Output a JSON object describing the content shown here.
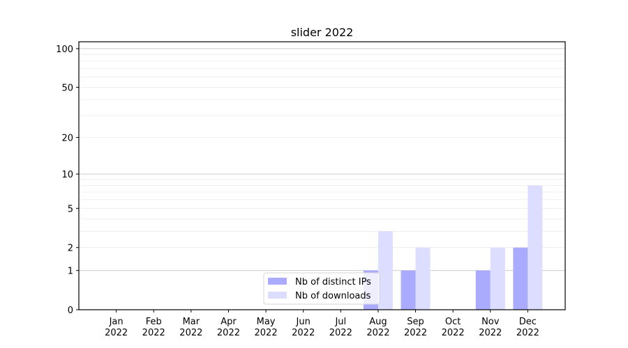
{
  "chart_data": {
    "type": "bar",
    "title": "slider 2022",
    "xlabel": "",
    "ylabel": "",
    "yscale": "log1p (symlog-like)",
    "ylim": [
      0,
      113
    ],
    "yticks": [
      0,
      1,
      2,
      5,
      10,
      20,
      50,
      100
    ],
    "ytick_labels": [
      "0",
      "1",
      "2",
      "5",
      "10",
      "20",
      "50",
      "100"
    ],
    "grid": true,
    "legend_position": "lower-center",
    "categories": [
      [
        "Jan",
        "2022"
      ],
      [
        "Feb",
        "2022"
      ],
      [
        "Mar",
        "2022"
      ],
      [
        "Apr",
        "2022"
      ],
      [
        "May",
        "2022"
      ],
      [
        "Jun",
        "2022"
      ],
      [
        "Jul",
        "2022"
      ],
      [
        "Aug",
        "2022"
      ],
      [
        "Sep",
        "2022"
      ],
      [
        "Oct",
        "2022"
      ],
      [
        "Nov",
        "2022"
      ],
      [
        "Dec",
        "2022"
      ]
    ],
    "series": [
      {
        "name": "Nb of distinct IPs",
        "color": "#aaaaff",
        "values": [
          0,
          0,
          0,
          0,
          0,
          0,
          0,
          1,
          1,
          0,
          1,
          2
        ]
      },
      {
        "name": "Nb of downloads",
        "color": "#ddddff",
        "values": [
          0,
          0,
          0,
          0,
          0,
          0,
          0,
          3,
          2,
          0,
          2,
          8
        ]
      }
    ]
  }
}
